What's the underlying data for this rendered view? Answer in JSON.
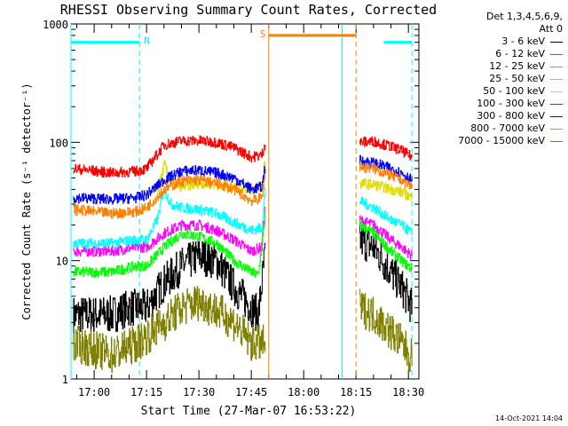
{
  "chart_data": {
    "type": "line",
    "title": "RHESSI Observing Summary Count Rates, Corrected",
    "xlabel": "Start Time (27-Mar-07 16:53:22)",
    "ylabel": "Corrected Count Rate (s⁻¹ detector⁻¹)",
    "y_scale": "log",
    "ylim": [
      1,
      1000
    ],
    "xlim": [
      "16:53:22",
      "18:33"
    ],
    "x_ticks": [
      "17:00",
      "17:15",
      "17:30",
      "17:45",
      "18:00",
      "18:15",
      "18:30"
    ],
    "y_ticks": [
      {
        "value": 1000,
        "label": "1000"
      },
      {
        "value": 100,
        "label": "100"
      },
      {
        "value": 10,
        "label": "10"
      },
      {
        "value": 1,
        "label": "1"
      }
    ],
    "legend_header": [
      "Det 1,3,4,5,6,9,",
      "Att 0"
    ],
    "legend_placement": "right",
    "annotations": [
      {
        "label": "N",
        "bar_start": "16:53:22",
        "bar_end": "17:13",
        "y": 700,
        "color": "#00ffff"
      },
      {
        "label": "S",
        "bar_start": "17:50",
        "bar_end": "18:15",
        "y": 800,
        "color": "#ff8000"
      },
      {
        "label": "",
        "bar_start": "18:23",
        "bar_end": "18:31",
        "y": 700,
        "color": "#00ffff"
      }
    ],
    "vlines": [
      {
        "time": "16:53:22",
        "color": "#00ffff",
        "dashed": false
      },
      {
        "time": "17:13",
        "color": "#00ffff",
        "dashed": true
      },
      {
        "time": "17:50",
        "color": "#ff8000",
        "dashed": false
      },
      {
        "time": "18:11",
        "color": "#00ffff",
        "dashed": false
      },
      {
        "time": "18:15",
        "color": "#ff8000",
        "dashed": true
      },
      {
        "time": "18:31",
        "color": "#00ffff",
        "dashed": true
      }
    ],
    "segments": [
      [
        "16:53:22",
        "17:49"
      ],
      [
        "18:16",
        "18:31"
      ]
    ],
    "series": [
      {
        "name": "3 - 6 keV",
        "color": "#000000",
        "seg1": [
          [
            "16:54",
            3.5
          ],
          [
            "17:05",
            3.5
          ],
          [
            "17:10",
            4
          ],
          [
            "17:15",
            4
          ],
          [
            "17:20",
            6.5
          ],
          [
            "17:25",
            9
          ],
          [
            "17:30",
            11
          ],
          [
            "17:35",
            10
          ],
          [
            "17:40",
            6
          ],
          [
            "17:45",
            4
          ],
          [
            "17:47",
            3.5
          ],
          [
            "17:49",
            12
          ]
        ],
        "seg2": [
          [
            "18:16",
            15
          ],
          [
            "18:20",
            13
          ],
          [
            "18:25",
            8
          ],
          [
            "18:28",
            6
          ],
          [
            "18:31",
            4
          ]
        ]
      },
      {
        "name": "6 - 12 keV",
        "color": "#ff00ff",
        "seg1": [
          [
            "16:54",
            12
          ],
          [
            "17:05",
            12
          ],
          [
            "17:12",
            13
          ],
          [
            "17:15",
            13
          ],
          [
            "17:20",
            17
          ],
          [
            "17:25",
            20
          ],
          [
            "17:30",
            20
          ],
          [
            "17:35",
            18
          ],
          [
            "17:40",
            15
          ],
          [
            "17:45",
            12
          ],
          [
            "17:48",
            13
          ],
          [
            "17:49",
            30
          ]
        ],
        "seg2": [
          [
            "18:16",
            22
          ],
          [
            "18:20",
            20
          ],
          [
            "18:25",
            15
          ],
          [
            "18:28",
            13
          ],
          [
            "18:31",
            11
          ]
        ]
      },
      {
        "name": "12 - 25 keV",
        "color": "#00ff00",
        "seg1": [
          [
            "16:54",
            8
          ],
          [
            "17:05",
            8
          ],
          [
            "17:12",
            9
          ],
          [
            "17:15",
            9
          ],
          [
            "17:20",
            13
          ],
          [
            "17:25",
            17
          ],
          [
            "17:30",
            16
          ],
          [
            "17:35",
            14
          ],
          [
            "17:40",
            10
          ],
          [
            "17:45",
            8
          ],
          [
            "17:47",
            7.5
          ],
          [
            "17:49",
            25
          ]
        ],
        "seg2": [
          [
            "18:16",
            20
          ],
          [
            "18:20",
            17
          ],
          [
            "18:25",
            12
          ],
          [
            "18:28",
            10
          ],
          [
            "18:31",
            8.5
          ]
        ]
      },
      {
        "name": "25 - 50 keV",
        "color": "#00ffff",
        "seg1": [
          [
            "16:54",
            14
          ],
          [
            "17:05",
            14
          ],
          [
            "17:12",
            15
          ],
          [
            "17:15",
            15
          ],
          [
            "17:18",
            22
          ],
          [
            "17:20",
            40
          ],
          [
            "17:22",
            30
          ],
          [
            "17:25",
            28
          ],
          [
            "17:30",
            27
          ],
          [
            "17:35",
            25
          ],
          [
            "17:40",
            21
          ],
          [
            "17:45",
            18
          ],
          [
            "17:48",
            19
          ],
          [
            "17:49",
            40
          ]
        ],
        "seg2": [
          [
            "18:16",
            32
          ],
          [
            "18:20",
            28
          ],
          [
            "18:25",
            22
          ],
          [
            "18:28",
            20
          ],
          [
            "18:31",
            17
          ]
        ]
      },
      {
        "name": "50 - 100 keV",
        "color": "#dddd00",
        "seg1": [
          [
            "17:18",
            35
          ],
          [
            "17:20",
            65
          ],
          [
            "17:22",
            45
          ],
          [
            "17:25",
            42
          ],
          [
            "17:30",
            45
          ],
          [
            "17:35",
            44
          ],
          [
            "17:40",
            42
          ],
          [
            "17:45",
            40
          ],
          [
            "17:48",
            43
          ],
          [
            "17:49",
            75
          ]
        ],
        "seg2": [
          [
            "18:16",
            45
          ],
          [
            "18:20",
            44
          ],
          [
            "18:25",
            40
          ],
          [
            "18:28",
            38
          ],
          [
            "18:31",
            34
          ]
        ]
      },
      {
        "name": "100 - 300 keV",
        "color": "#ff0000",
        "seg1": [
          [
            "16:54",
            60
          ],
          [
            "17:05",
            55
          ],
          [
            "17:12",
            57
          ],
          [
            "17:15",
            60
          ],
          [
            "17:20",
            95
          ],
          [
            "17:25",
            103
          ],
          [
            "17:30",
            103
          ],
          [
            "17:35",
            100
          ],
          [
            "17:40",
            90
          ],
          [
            "17:45",
            75
          ],
          [
            "17:48",
            78
          ],
          [
            "17:49",
            100
          ]
        ],
        "seg2": [
          [
            "18:16",
            100
          ],
          [
            "18:20",
            102
          ],
          [
            "18:25",
            92
          ],
          [
            "18:28",
            85
          ],
          [
            "18:31",
            75
          ]
        ]
      },
      {
        "name": "300 - 800 keV",
        "color": "#0000ff",
        "seg1": [
          [
            "16:54",
            34
          ],
          [
            "17:05",
            33
          ],
          [
            "17:12",
            34
          ],
          [
            "17:15",
            36
          ],
          [
            "17:20",
            48
          ],
          [
            "17:25",
            57
          ],
          [
            "17:30",
            58
          ],
          [
            "17:35",
            55
          ],
          [
            "17:40",
            50
          ],
          [
            "17:45",
            40
          ],
          [
            "17:48",
            42
          ],
          [
            "17:49",
            65
          ]
        ],
        "seg2": [
          [
            "18:16",
            70
          ],
          [
            "18:20",
            67
          ],
          [
            "18:25",
            60
          ],
          [
            "18:28",
            55
          ],
          [
            "18:31",
            48
          ]
        ]
      },
      {
        "name": "800 - 7000 keV",
        "color": "#ff8000",
        "seg1": [
          [
            "16:54",
            27
          ],
          [
            "17:05",
            25
          ],
          [
            "17:12",
            26
          ],
          [
            "17:15",
            28
          ],
          [
            "17:20",
            40
          ],
          [
            "17:25",
            47
          ],
          [
            "17:30",
            48
          ],
          [
            "17:35",
            45
          ],
          [
            "17:40",
            40
          ],
          [
            "17:45",
            32
          ],
          [
            "17:48",
            34
          ],
          [
            "17:49",
            55
          ]
        ],
        "seg2": [
          [
            "18:16",
            62
          ],
          [
            "18:20",
            60
          ],
          [
            "18:25",
            52
          ],
          [
            "18:28",
            48
          ],
          [
            "18:31",
            42
          ]
        ]
      },
      {
        "name": "7000 - 15000 keV",
        "color": "#808000",
        "seg1": [
          [
            "16:54",
            2
          ],
          [
            "17:05",
            1.6
          ],
          [
            "17:12",
            2
          ],
          [
            "17:15",
            2.3
          ],
          [
            "17:20",
            3
          ],
          [
            "17:25",
            4
          ],
          [
            "17:30",
            4.5
          ],
          [
            "17:35",
            3.8
          ],
          [
            "17:40",
            3
          ],
          [
            "17:45",
            2
          ],
          [
            "17:49",
            2
          ]
        ],
        "seg2": [
          [
            "18:16",
            4
          ],
          [
            "18:20",
            3.5
          ],
          [
            "18:25",
            2.5
          ],
          [
            "18:28",
            2
          ],
          [
            "18:31",
            1.5
          ]
        ]
      }
    ]
  },
  "footer": {
    "timestamp": "14-Oct-2021 14:04"
  }
}
